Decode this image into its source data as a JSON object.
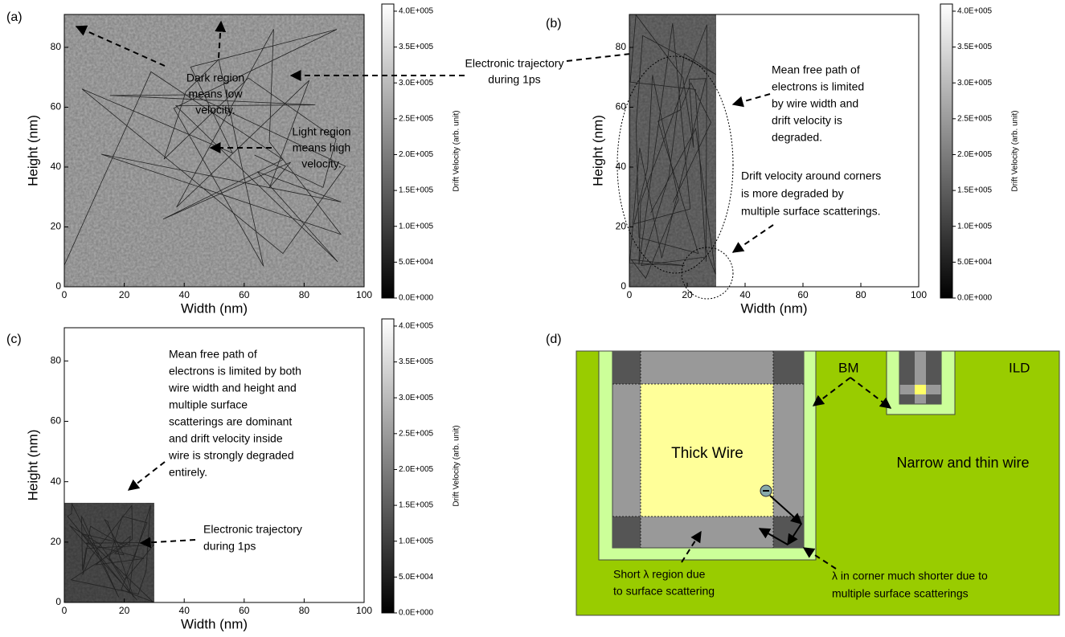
{
  "chart_data": [
    {
      "type": "heatmap",
      "panel_label": "(a)",
      "xlabel": "Width  (nm)",
      "ylabel": "Height (nm)",
      "xlim": [
        0,
        100
      ],
      "ylim": [
        0,
        91
      ],
      "xticks": [
        0,
        20,
        40,
        60,
        80,
        100
      ],
      "yticks": [
        0,
        20,
        40,
        60,
        80
      ],
      "wire_x": [
        0,
        100
      ],
      "wire_y": [
        0,
        91
      ],
      "color": "#b0b0b0",
      "colorbar_label": "Drift Velocity (arb. unit)",
      "clim": [
        0,
        410000
      ],
      "cticks": [
        {
          "value": 0,
          "label": "0.0E+000"
        },
        {
          "value": 50000,
          "label": "5.0E+004"
        },
        {
          "value": 100000,
          "label": "1.0E+005"
        },
        {
          "value": 150000,
          "label": "1.5E+005"
        },
        {
          "value": 200000,
          "label": "2.0E+005"
        },
        {
          "value": 250000,
          "label": "2.5E+005"
        },
        {
          "value": 300000,
          "label": "3.0E+005"
        },
        {
          "value": 350000,
          "label": "3.5E+005"
        },
        {
          "value": 400000,
          "label": "4.0E+005"
        }
      ],
      "annotations": [
        {
          "lines": [
            "Dark region",
            "means low",
            "velocity."
          ]
        },
        {
          "lines": [
            "Light region",
            "means high",
            "velocity."
          ]
        },
        {
          "lines": [
            "Electronic trajectory",
            "during 1ps"
          ]
        }
      ]
    },
    {
      "type": "heatmap",
      "panel_label": "(b)",
      "xlabel": "Width  (nm)",
      "ylabel": "Height (nm)",
      "xlim": [
        0,
        100
      ],
      "ylim": [
        0,
        91
      ],
      "xticks": [
        0,
        20,
        40,
        60,
        80,
        100
      ],
      "yticks": [
        0,
        20,
        40,
        60,
        80
      ],
      "wire_x": [
        0,
        30
      ],
      "wire_y": [
        0,
        91
      ],
      "color": "#6e6e6e",
      "colorbar_label": "Drift Velocity (arb. unit)",
      "clim": [
        0,
        410000
      ],
      "cticks": [
        {
          "value": 0,
          "label": "0.0E+000"
        },
        {
          "value": 50000,
          "label": "5.0E+004"
        },
        {
          "value": 100000,
          "label": "1.0E+005"
        },
        {
          "value": 150000,
          "label": "1.5E+005"
        },
        {
          "value": 200000,
          "label": "2.0E+005"
        },
        {
          "value": 250000,
          "label": "2.5E+005"
        },
        {
          "value": 300000,
          "label": "3.0E+005"
        },
        {
          "value": 350000,
          "label": "3.5E+005"
        },
        {
          "value": 400000,
          "label": "4.0E+005"
        }
      ],
      "annotations": [
        {
          "lines": [
            "Mean free path of",
            "electrons is limited",
            "by wire width and",
            "drift velocity is",
            "degraded."
          ]
        },
        {
          "lines": [
            "Drift velocity around corners",
            "is more degraded by",
            "multiple surface scatterings."
          ]
        }
      ]
    },
    {
      "type": "heatmap",
      "panel_label": "(c)",
      "xlabel": "Width  (nm)",
      "ylabel": "Height (nm)",
      "xlim": [
        0,
        100
      ],
      "ylim": [
        0,
        91
      ],
      "xticks": [
        0,
        20,
        40,
        60,
        80,
        100
      ],
      "yticks": [
        0,
        20,
        40,
        60,
        80
      ],
      "wire_x": [
        0,
        30
      ],
      "wire_y": [
        0,
        33
      ],
      "color": "#505050",
      "colorbar_label": "Drift Velocity (arb. unit)",
      "clim": [
        0,
        410000
      ],
      "cticks": [
        {
          "value": 0,
          "label": "0.0E+000"
        },
        {
          "value": 50000,
          "label": "5.0E+004"
        },
        {
          "value": 100000,
          "label": "1.0E+005"
        },
        {
          "value": 150000,
          "label": "1.5E+005"
        },
        {
          "value": 200000,
          "label": "2.0E+005"
        },
        {
          "value": 250000,
          "label": "2.5E+005"
        },
        {
          "value": 300000,
          "label": "3.0E+005"
        },
        {
          "value": 350000,
          "label": "3.5E+005"
        },
        {
          "value": 400000,
          "label": "4.0E+005"
        }
      ],
      "annotations": [
        {
          "lines": [
            "Mean free path of",
            "electrons is limited by both",
            "wire width and height and",
            "multiple surface",
            "scatterings are dominant",
            "and drift velocity inside",
            "wire is strongly degraded",
            "entirely."
          ]
        },
        {
          "lines": [
            "Electronic    trajectory",
            "during 1ps"
          ]
        }
      ]
    }
  ],
  "diagram": {
    "panel_label": "(d)",
    "bm": "BM",
    "ild": "ILD",
    "thick": "Thick Wire",
    "narrow": "Narrow and thin wire",
    "short_region": [
      "Short λ region due",
      "to surface scattering"
    ],
    "corner": [
      "λ in corner much shorter due to",
      "multiple surface scatterings"
    ]
  }
}
